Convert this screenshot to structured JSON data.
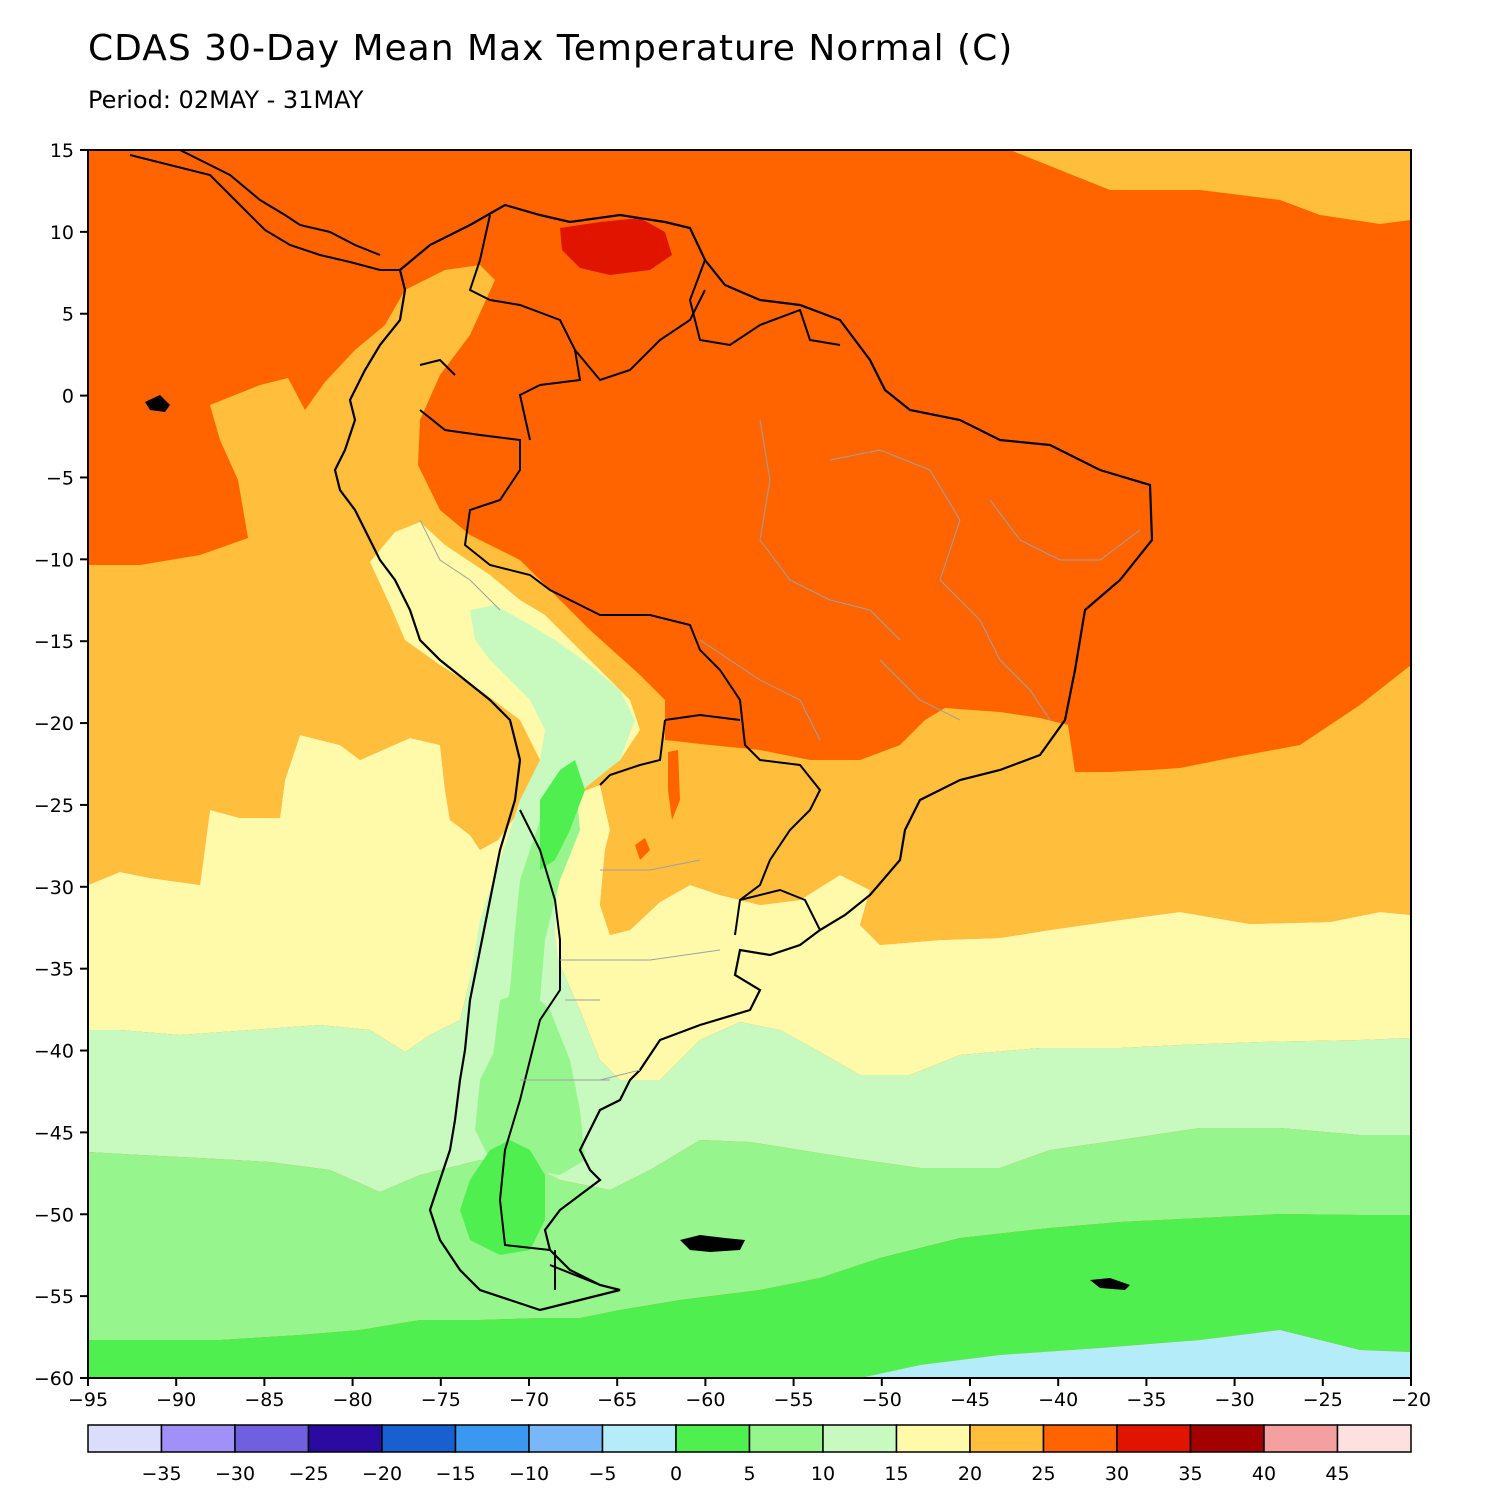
{
  "header": {
    "title": "CDAS 30-Day Mean Max Temperature Normal (C)",
    "period": "Period: 02MAY - 31MAY"
  },
  "map": {
    "region": "South America",
    "projection": "lat-lon",
    "lon_range": [
      -95,
      -20
    ],
    "lat_range": [
      -60,
      15
    ],
    "x_ticks": [
      -95,
      -90,
      -85,
      -80,
      -75,
      -70,
      -65,
      -60,
      -55,
      -50,
      -45,
      -40,
      -35,
      -30,
      -25,
      -20
    ],
    "y_ticks": [
      15,
      10,
      5,
      0,
      -5,
      -10,
      -15,
      -20,
      -25,
      -30,
      -35,
      -40,
      -45,
      -50,
      -55,
      -60
    ],
    "units": "C"
  },
  "colorbar": {
    "colors": [
      "#dcdcfc",
      "#a090f8",
      "#7060e0",
      "#2a0aa0",
      "#1860d0",
      "#3a98f0",
      "#78b8f8",
      "#b4ecfa",
      "#50ef50",
      "#96f58c",
      "#c8fac0",
      "#fffaaa",
      "#ffbe3c",
      "#ff6400",
      "#e11400",
      "#a50000",
      "#f5a0a0",
      "#fde0e0"
    ],
    "labels": [
      "-35",
      "-30",
      "-25",
      "-20",
      "-15",
      "-10",
      "-5",
      "0",
      "5",
      "10",
      "15",
      "20",
      "25",
      "30",
      "35",
      "40",
      "45"
    ]
  }
}
